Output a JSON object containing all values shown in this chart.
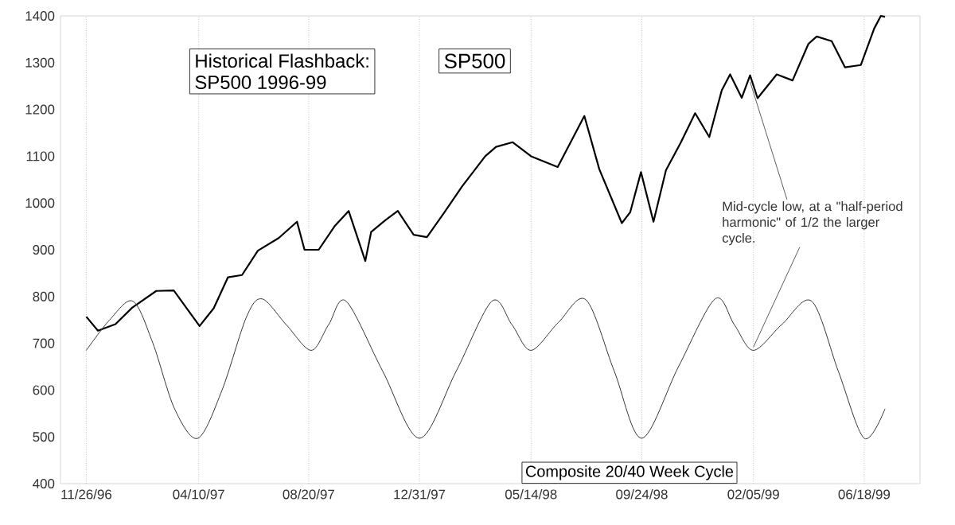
{
  "chart_data": {
    "type": "line",
    "title": "Historical Flashback:",
    "subtitle": "SP500 1996-99",
    "xlim": [
      "1996-10-26",
      "1999-08-24"
    ],
    "xticks": [
      {
        "value": "1996-11-26",
        "label": "11/26/96"
      },
      {
        "value": "1997-04-10",
        "label": "04/10/97"
      },
      {
        "value": "1997-08-20",
        "label": "08/20/97"
      },
      {
        "value": "1997-12-31",
        "label": "12/31/97"
      },
      {
        "value": "1998-05-14",
        "label": "05/14/98"
      },
      {
        "value": "1998-09-24",
        "label": "09/24/98"
      },
      {
        "value": "1999-02-05",
        "label": "02/05/99"
      },
      {
        "value": "1999-06-18",
        "label": "06/18/99"
      }
    ],
    "ylim": [
      400,
      1400
    ],
    "yticks": [
      400,
      500,
      600,
      700,
      800,
      900,
      1000,
      1100,
      1200,
      1300,
      1400
    ],
    "grid": "x",
    "series": [
      {
        "name": "SP500",
        "color": "#000000",
        "x": [
          "1996-11-26",
          "1996-12-10",
          "1996-12-31",
          "1997-01-20",
          "1997-02-18",
          "1997-03-11",
          "1997-04-11",
          "1997-04-28",
          "1997-05-15",
          "1997-06-01",
          "1997-06-20",
          "1997-07-15",
          "1997-08-06",
          "1997-08-15",
          "1997-09-01",
          "1997-09-20",
          "1997-10-07",
          "1997-10-27",
          "1997-11-03",
          "1997-11-20",
          "1997-12-05",
          "1997-12-24",
          "1998-01-09",
          "1998-01-30",
          "1998-02-20",
          "1998-03-20",
          "1998-04-02",
          "1998-04-22",
          "1998-05-14",
          "1998-06-15",
          "1998-07-17",
          "1998-08-04",
          "1998-08-31",
          "1998-09-10",
          "1998-09-23",
          "1998-10-08",
          "1998-10-23",
          "1998-11-10",
          "1998-11-27",
          "1998-12-14",
          "1998-12-29",
          "1999-01-08",
          "1999-01-22",
          "1999-02-01",
          "1999-02-10",
          "1999-03-05",
          "1999-03-24",
          "1999-04-12",
          "1999-04-22",
          "1999-05-10",
          "1999-05-26",
          "1999-06-14",
          "1999-06-30",
          "1999-07-08",
          "1999-07-13"
        ],
        "values": [
          757,
          727,
          741,
          776,
          812,
          813,
          737,
          775,
          841,
          846,
          898,
          925,
          960,
          900,
          900,
          950,
          983,
          876,
          938,
          963,
          983,
          932,
          927,
          980,
          1035,
          1100,
          1120,
          1130,
          1100,
          1077,
          1186,
          1072,
          957,
          980,
          1066,
          960,
          1070,
          1130,
          1192,
          1141,
          1241,
          1275,
          1225,
          1273,
          1224,
          1275,
          1262,
          1340,
          1356,
          1346,
          1290,
          1295,
          1373,
          1400,
          1398
        ]
      },
      {
        "name": "Composite 20/40 Week Cycle",
        "color": "#333333",
        "x": [
          "1996-11-26",
          "1996-12-24",
          "1997-01-21",
          "1997-02-14",
          "1997-03-12",
          "1997-04-09",
          "1997-05-08",
          "1997-06-06",
          "1997-06-25",
          "1997-07-24",
          "1997-08-23",
          "1997-09-13",
          "1997-10-04",
          "1997-11-17",
          "1997-12-31",
          "1998-02-13",
          "1998-03-28",
          "1998-04-21",
          "1998-05-14",
          "1998-06-16",
          "1998-07-19",
          "1998-08-22",
          "1998-09-24",
          "1998-11-07",
          "1998-12-21",
          "1999-01-13",
          "1999-02-05",
          "1999-03-11",
          "1999-04-16",
          "1999-05-18",
          "1999-06-18",
          "1999-07-13"
        ],
        "values": [
          685,
          750,
          790,
          700,
          560,
          497,
          600,
          755,
          795,
          740,
          685,
          740,
          790,
          640,
          497,
          640,
          790,
          740,
          685,
          745,
          793,
          640,
          497,
          650,
          795,
          740,
          685,
          740,
          790,
          640,
          497,
          560
        ]
      }
    ],
    "annotations": [
      {
        "text": "Mid-cycle low, at a \"half-period harmonic\" of 1/2 the larger cycle.",
        "x": "1999-02-05",
        "y": 685
      }
    ]
  }
}
